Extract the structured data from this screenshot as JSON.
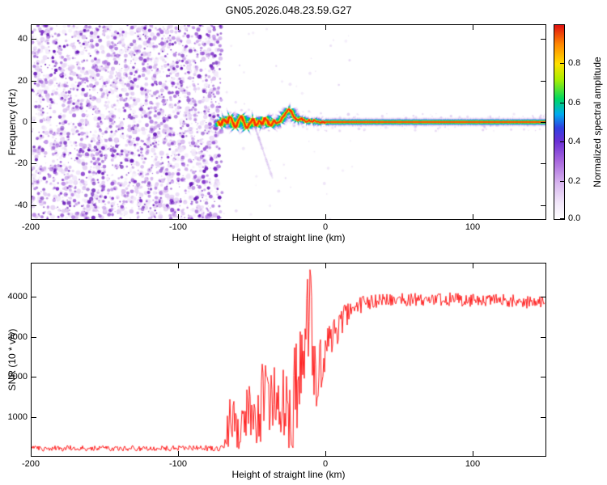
{
  "title": "GN05.2026.048.23.59.G27",
  "chart_data": [
    {
      "type": "heatmap",
      "panel": "spectrogram",
      "title": "GN05.2026.048.23.59.G27",
      "xlabel": "Height of straight line (km)",
      "ylabel": "Frequency (Hz)",
      "xlim": [
        -200,
        150
      ],
      "ylim": [
        -47,
        47
      ],
      "xticks": [
        -200,
        -100,
        0,
        100
      ],
      "yticks": [
        -40,
        -20,
        0,
        20,
        40
      ],
      "grid": false,
      "colorbar": {
        "label": "Normalized spectral amplitude",
        "ticks": [
          "0.0",
          "0.2",
          "0.4",
          "0.6",
          "0.8"
        ],
        "tick_values": [
          0,
          0.2,
          0.4,
          0.6,
          0.8
        ],
        "range": [
          0,
          1
        ],
        "stops": [
          [
            0,
            "#ffffff"
          ],
          [
            0.08,
            "#f2e8fa"
          ],
          [
            0.18,
            "#d9b8ef"
          ],
          [
            0.3,
            "#a766dd"
          ],
          [
            0.4,
            "#6a2fd4"
          ],
          [
            0.47,
            "#2f3fe0"
          ],
          [
            0.54,
            "#00aaf0"
          ],
          [
            0.62,
            "#00d860"
          ],
          [
            0.72,
            "#aaee00"
          ],
          [
            0.8,
            "#ffe000"
          ],
          [
            0.9,
            "#ff8800"
          ],
          [
            1,
            "#e01010"
          ]
        ]
      },
      "noise_region": {
        "x_range": [
          -200,
          -73
        ],
        "color": "#7a1fc0",
        "description": "uncorrelated speckle noise filling full frequency band"
      },
      "trace": {
        "description": "high-amplitude carrier: wavy from -73 to 0 km, straight at ~0 Hz from 0 to 150 km",
        "x": [
          -73,
          -71,
          -69,
          -67,
          -65,
          -63,
          -61,
          -59,
          -57,
          -55,
          -53,
          -51,
          -49,
          -47,
          -45,
          -43,
          -41,
          -39,
          -37,
          -35,
          -33,
          -31,
          -29,
          -27,
          -25,
          -23,
          -21,
          -19,
          -17,
          -15,
          -13,
          -11,
          -9,
          -7,
          -5,
          -3,
          0,
          150
        ],
        "freq": [
          1,
          -2,
          2,
          -1,
          3,
          0,
          -3,
          1,
          3,
          -1,
          -3,
          0,
          2,
          -2,
          1,
          -1,
          2,
          0,
          -2,
          1,
          -1,
          0,
          2,
          4,
          6,
          5,
          2,
          1,
          2,
          1,
          0,
          1,
          0,
          1,
          0,
          0,
          0,
          0
        ]
      },
      "streak": {
        "x1": -48,
        "f1": -2,
        "x2": -36,
        "f2": -27
      }
    },
    {
      "type": "line",
      "panel": "snr",
      "xlabel": "Height of straight line (km)",
      "ylabel": "SNR (10 * v/v)",
      "xlim": [
        -200,
        150
      ],
      "ylim": [
        0,
        4850
      ],
      "xticks": [
        -200,
        -100,
        0,
        100
      ],
      "yticks": [
        1000,
        2000,
        3000,
        4000
      ],
      "grid": false,
      "series": [
        {
          "name": "SNR",
          "color": "#ff2020",
          "profile_format": "[height_km, mean_snr, noise_halfwidth]",
          "profile": [
            [
              -200,
              190,
              70
            ],
            [
              -72,
              190,
              70
            ],
            [
              -68,
              260,
              200
            ],
            [
              -66,
              900,
              800
            ],
            [
              -62,
              750,
              700
            ],
            [
              -58,
              650,
              550
            ],
            [
              -54,
              950,
              850
            ],
            [
              -50,
              1150,
              1000
            ],
            [
              -46,
              1000,
              900
            ],
            [
              -42,
              1550,
              1300
            ],
            [
              -38,
              1450,
              1250
            ],
            [
              -34,
              1250,
              1100
            ],
            [
              -30,
              1500,
              1300
            ],
            [
              -26,
              1050,
              950
            ],
            [
              -22,
              1450,
              1250
            ],
            [
              -18,
              1750,
              1400
            ],
            [
              -15,
              2400,
              1500
            ],
            [
              -12,
              3100,
              1500
            ],
            [
              -10,
              4750,
              150
            ],
            [
              -9,
              2900,
              1400
            ],
            [
              -7,
              1700,
              1000
            ],
            [
              -5,
              2050,
              800
            ],
            [
              -3,
              2350,
              700
            ],
            [
              -1,
              2600,
              600
            ],
            [
              2,
              2900,
              500
            ],
            [
              6,
              3100,
              450
            ],
            [
              10,
              3300,
              400
            ],
            [
              14,
              3500,
              350
            ],
            [
              18,
              3650,
              300
            ],
            [
              22,
              3760,
              260
            ],
            [
              27,
              3860,
              220
            ],
            [
              32,
              3910,
              200
            ],
            [
              40,
              3940,
              185
            ],
            [
              55,
              3950,
              175
            ],
            [
              70,
              3930,
              170
            ],
            [
              85,
              3950,
              170
            ],
            [
              100,
              3930,
              170
            ],
            [
              115,
              3940,
              170
            ],
            [
              130,
              3910,
              170
            ],
            [
              140,
              3880,
              175
            ],
            [
              150,
              3890,
              170
            ]
          ]
        }
      ]
    }
  ]
}
